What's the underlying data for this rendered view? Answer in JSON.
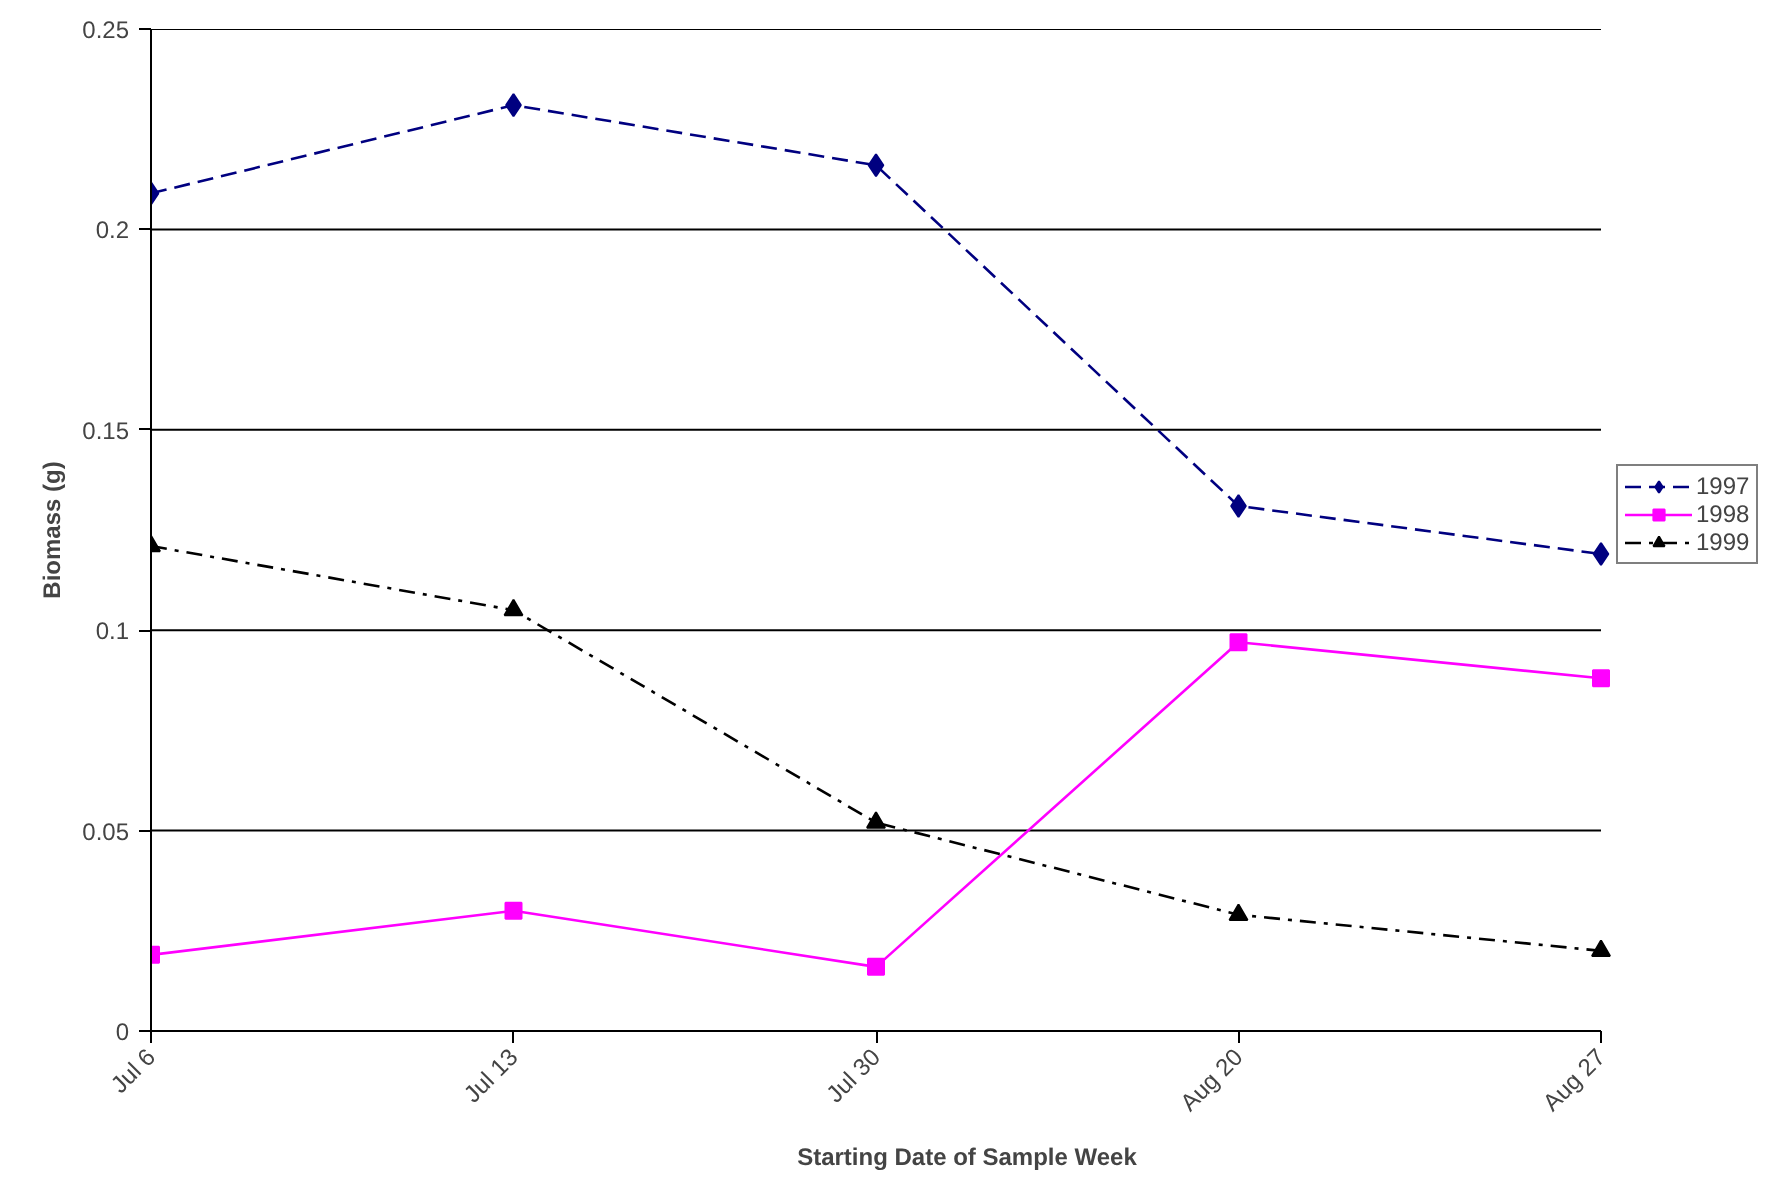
{
  "chart_data": {
    "type": "line",
    "xlabel": "Starting Date of Sample Week",
    "ylabel": "Biomass (g)",
    "categories": [
      "Jul 6",
      "Jul 13",
      "Jul 30",
      "Aug 20",
      "Aug 27"
    ],
    "ylim": [
      0,
      0.25
    ],
    "yticks": [
      0,
      0.05,
      0.1,
      0.15,
      0.2,
      0.25
    ],
    "grid": "y",
    "legend": "right",
    "series": [
      {
        "name": "1997",
        "color": "#000080",
        "values": [
          0.209,
          0.231,
          0.216,
          0.131,
          0.119
        ],
        "marker": "diamond",
        "line_style": "dashed"
      },
      {
        "name": "1998",
        "color": "#ff00ff",
        "values": [
          0.019,
          0.03,
          0.016,
          0.097,
          0.088
        ],
        "marker": "square",
        "line_style": "solid"
      },
      {
        "name": "1999",
        "color": "#000000",
        "values": [
          0.121,
          0.105,
          0.052,
          0.029,
          0.02
        ],
        "marker": "triangle",
        "line_style": "dashdot"
      }
    ]
  }
}
